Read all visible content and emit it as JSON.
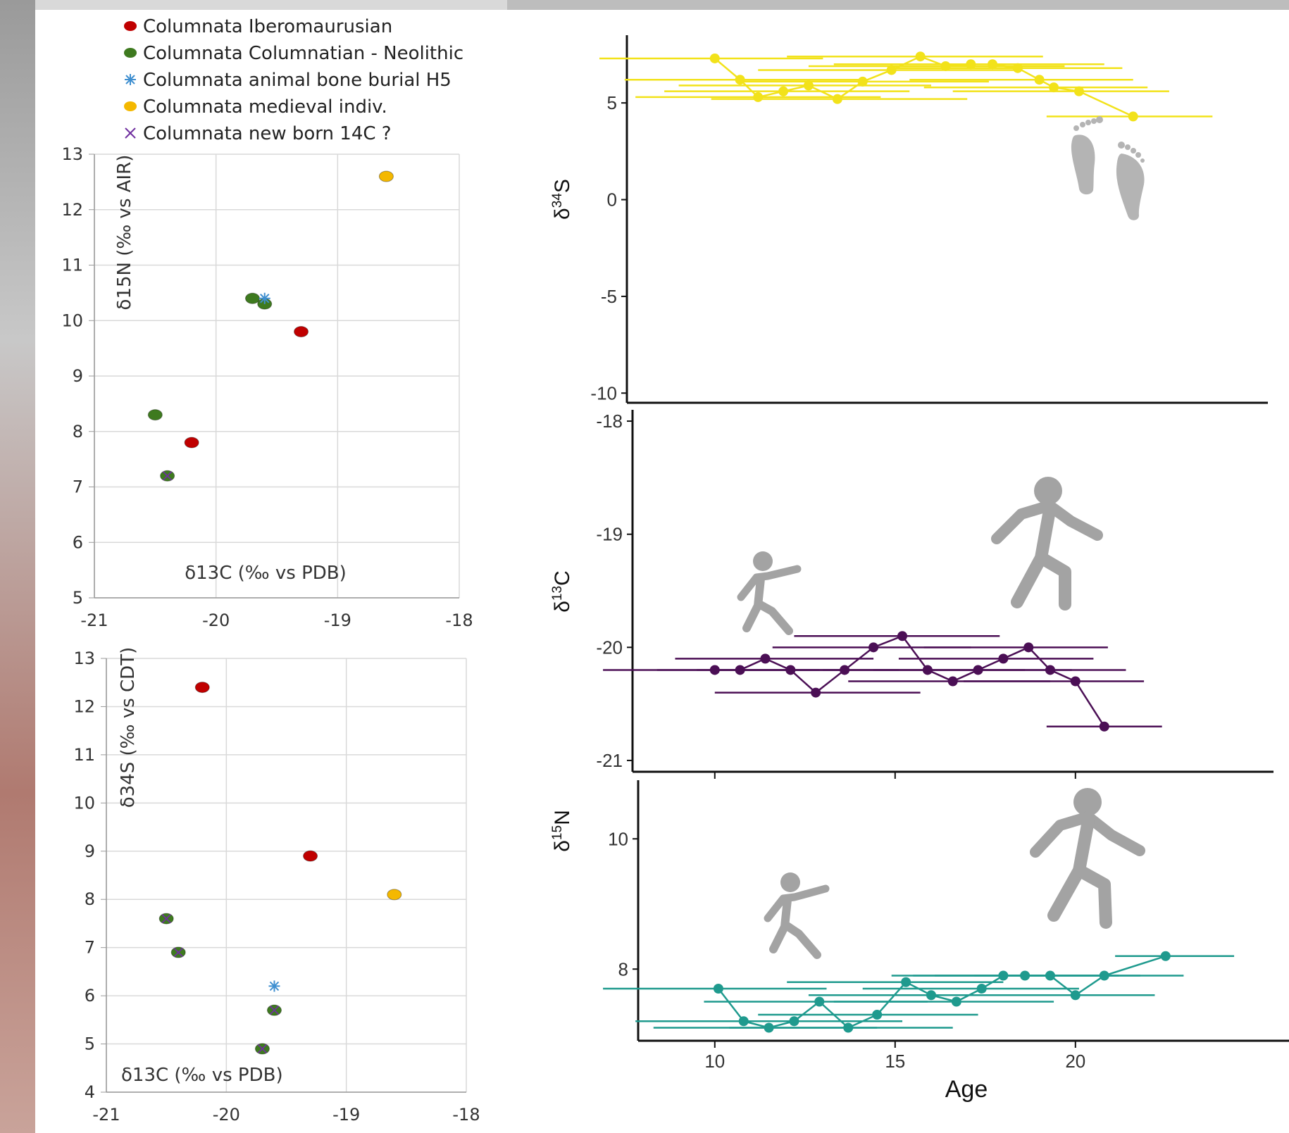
{
  "legend": [
    {
      "label": "Columnata Iberomaurusian",
      "color": "#c00000",
      "marker": "dot"
    },
    {
      "label": "Columnata Columnatian - Neolithic",
      "color": "#3e7a1f",
      "marker": "dot"
    },
    {
      "label": "Columnata animal bone burial H5",
      "color": "#3f8fd0",
      "marker": "star"
    },
    {
      "label": "Columnata medieval indiv.",
      "color": "#f4b800",
      "marker": "dot"
    },
    {
      "label": "Columnata new born 14C ?",
      "color": "#7030a0",
      "marker": "x"
    }
  ],
  "scatter1": {
    "ylabel": "δ15N (‰ vs AIR)",
    "xlabel": "δ13C (‰ vs PDB)",
    "yticks": [
      "13",
      "12",
      "11",
      "10",
      "9",
      "8",
      "7",
      "6",
      "5"
    ],
    "xticks": [
      "-21",
      "-20",
      "-19",
      "-18"
    ]
  },
  "scatter2": {
    "ylabel": "δ34S (‰ vs CDT)",
    "xlabel": "δ13C (‰ vs PDB)",
    "yticks": [
      "13",
      "12",
      "11",
      "10",
      "9",
      "8",
      "7",
      "6",
      "5",
      "4"
    ],
    "xticks": [
      "-21",
      "-20",
      "-19",
      "-18"
    ]
  },
  "right": {
    "sulfur": {
      "label_prefix": "δ",
      "label_sup": "34",
      "label_el": "S",
      "yticks": [
        "5",
        "0",
        "-5",
        "-10"
      ],
      "color": "#f2e21a"
    },
    "carbon": {
      "label_prefix": "δ",
      "label_sup": "13",
      "label_el": "C",
      "yticks": [
        "-18",
        "-19",
        "-20",
        "-21"
      ],
      "color": "#4b0f55"
    },
    "nitrogen": {
      "label_prefix": "δ",
      "label_sup": "15",
      "label_el": "N",
      "yticks": [
        "10",
        "8"
      ],
      "color": "#1f9a8e"
    },
    "xticks": [
      "10",
      "15",
      "20"
    ],
    "xlabel": "Age"
  },
  "chart_data": [
    {
      "type": "scatter",
      "title": "",
      "xlabel": "δ13C (‰ vs PDB)",
      "ylabel": "δ15N (‰ vs AIR)",
      "xlim": [
        -21,
        -18
      ],
      "ylim": [
        5,
        13
      ],
      "grid": true,
      "legend_position": "top",
      "series": [
        {
          "name": "Columnata Iberomaurusian",
          "color": "#c00000",
          "marker": "dot",
          "points": [
            [
              -19.3,
              9.8
            ],
            [
              -20.2,
              7.8
            ]
          ]
        },
        {
          "name": "Columnata Columnatian - Neolithic",
          "color": "#3e7a1f",
          "marker": "dot",
          "points": [
            [
              -19.7,
              10.4
            ],
            [
              -19.6,
              10.3
            ],
            [
              -20.5,
              8.3
            ],
            [
              -20.4,
              7.2
            ]
          ]
        },
        {
          "name": "Columnata animal bone burial H5",
          "color": "#3f8fd0",
          "marker": "star",
          "points": [
            [
              -19.6,
              10.4
            ]
          ]
        },
        {
          "name": "Columnata medieval indiv.",
          "color": "#f4b800",
          "marker": "dot",
          "points": [
            [
              -18.6,
              12.6
            ]
          ]
        },
        {
          "name": "Columnata new born 14C ?",
          "color": "#7030a0",
          "marker": "x",
          "points": [
            [
              -20.4,
              7.2
            ]
          ]
        }
      ]
    },
    {
      "type": "scatter",
      "title": "",
      "xlabel": "δ13C (‰ vs PDB)",
      "ylabel": "δ34S (‰ vs CDT)",
      "xlim": [
        -21,
        -18
      ],
      "ylim": [
        4,
        13
      ],
      "grid": true,
      "series": [
        {
          "name": "Columnata Iberomaurusian",
          "color": "#c00000",
          "marker": "dot",
          "points": [
            [
              -20.2,
              12.4
            ],
            [
              -19.3,
              8.9
            ]
          ]
        },
        {
          "name": "Columnata Columnatian - Neolithic",
          "color": "#3e7a1f",
          "marker": "dot",
          "points": [
            [
              -20.5,
              7.6
            ],
            [
              -20.4,
              6.9
            ],
            [
              -19.6,
              5.7
            ],
            [
              -19.7,
              4.9
            ]
          ]
        },
        {
          "name": "Columnata animal bone burial H5",
          "color": "#3f8fd0",
          "marker": "star",
          "points": [
            [
              -19.6,
              6.2
            ]
          ]
        },
        {
          "name": "Columnata medieval indiv.",
          "color": "#f4b800",
          "marker": "dot",
          "points": [
            [
              -18.6,
              8.1
            ]
          ]
        },
        {
          "name": "Columnata new born 14C ?",
          "color": "#7030a0",
          "marker": "x",
          "points": [
            [
              -20.5,
              7.6
            ],
            [
              -20.4,
              6.9
            ],
            [
              -19.6,
              5.7
            ],
            [
              -19.7,
              4.9
            ]
          ]
        }
      ]
    },
    {
      "type": "line",
      "xlabel": "",
      "ylabel": "δ34S",
      "xlim": [
        6,
        24
      ],
      "ylim": [
        -10.5,
        8.5
      ],
      "color": "#f2e21a",
      "points": [
        {
          "x": 10.0,
          "y": 7.3,
          "xmin": 6.8,
          "xmax": 13.0
        },
        {
          "x": 10.7,
          "y": 6.2,
          "xmin": 7.5,
          "xmax": 14.2
        },
        {
          "x": 11.2,
          "y": 5.3,
          "xmin": 7.8,
          "xmax": 14.6
        },
        {
          "x": 11.9,
          "y": 5.6,
          "xmin": 8.6,
          "xmax": 15.4
        },
        {
          "x": 12.6,
          "y": 5.9,
          "xmin": 9.0,
          "xmax": 16.0
        },
        {
          "x": 13.4,
          "y": 5.2,
          "xmin": 9.9,
          "xmax": 17.0
        },
        {
          "x": 14.1,
          "y": 6.1,
          "xmin": 10.6,
          "xmax": 17.6
        },
        {
          "x": 14.9,
          "y": 6.7,
          "xmin": 11.2,
          "xmax": 18.3
        },
        {
          "x": 15.7,
          "y": 7.4,
          "xmin": 12.0,
          "xmax": 19.1
        },
        {
          "x": 16.4,
          "y": 6.9,
          "xmin": 12.6,
          "xmax": 19.7
        },
        {
          "x": 17.1,
          "y": 7.0,
          "xmin": 13.3,
          "xmax": 20.3
        },
        {
          "x": 17.7,
          "y": 7.0,
          "xmin": 13.9,
          "xmax": 20.8
        },
        {
          "x": 18.4,
          "y": 6.8,
          "xmin": 14.8,
          "xmax": 21.3
        },
        {
          "x": 19.0,
          "y": 6.2,
          "xmin": 15.4,
          "xmax": 21.6
        },
        {
          "x": 19.4,
          "y": 5.8,
          "xmin": 15.8,
          "xmax": 22.0
        },
        {
          "x": 20.1,
          "y": 5.6,
          "xmin": 16.6,
          "xmax": 22.6
        },
        {
          "x": 21.6,
          "y": 4.3,
          "xmin": 19.2,
          "xmax": 23.8
        }
      ]
    },
    {
      "type": "line",
      "xlabel": "",
      "ylabel": "δ13C",
      "xlim": [
        6,
        24
      ],
      "ylim": [
        -21.1,
        -17.9
      ],
      "color": "#4b0f55",
      "points": [
        {
          "x": 10.0,
          "y": -20.2,
          "xmin": 6.9,
          "xmax": 12.9
        },
        {
          "x": 10.7,
          "y": -20.2,
          "xmin": 8.4,
          "xmax": 13.7
        },
        {
          "x": 11.4,
          "y": -20.1,
          "xmin": 8.9,
          "xmax": 14.4
        },
        {
          "x": 12.1,
          "y": -20.2,
          "xmin": 9.5,
          "xmax": 15.1
        },
        {
          "x": 12.8,
          "y": -20.4,
          "xmin": 10.0,
          "xmax": 15.7
        },
        {
          "x": 13.6,
          "y": -20.2,
          "xmin": 10.8,
          "xmax": 16.4
        },
        {
          "x": 14.4,
          "y": -20.0,
          "xmin": 11.6,
          "xmax": 17.1
        },
        {
          "x": 15.2,
          "y": -19.9,
          "xmin": 12.2,
          "xmax": 17.9
        },
        {
          "x": 15.9,
          "y": -20.2,
          "xmin": 13.0,
          "xmax": 18.6
        },
        {
          "x": 16.6,
          "y": -20.3,
          "xmin": 13.7,
          "xmax": 19.3
        },
        {
          "x": 17.3,
          "y": -20.2,
          "xmin": 14.4,
          "xmax": 19.9
        },
        {
          "x": 18.0,
          "y": -20.1,
          "xmin": 15.1,
          "xmax": 20.5
        },
        {
          "x": 18.7,
          "y": -20.0,
          "xmin": 15.8,
          "xmax": 20.9
        },
        {
          "x": 19.3,
          "y": -20.2,
          "xmin": 16.4,
          "xmax": 21.4
        },
        {
          "x": 20.0,
          "y": -20.3,
          "xmin": 16.9,
          "xmax": 21.9
        },
        {
          "x": 20.8,
          "y": -20.7,
          "xmin": 19.2,
          "xmax": 22.4
        }
      ]
    },
    {
      "type": "line",
      "xlabel": "Age",
      "ylabel": "δ15N",
      "xlim": [
        6,
        24
      ],
      "ylim": [
        6.9,
        10.9
      ],
      "color": "#1f9a8e",
      "points": [
        {
          "x": 10.1,
          "y": 7.7,
          "xmin": 6.9,
          "xmax": 13.1
        },
        {
          "x": 10.8,
          "y": 7.2,
          "xmin": 7.8,
          "xmax": 13.8
        },
        {
          "x": 11.5,
          "y": 7.1,
          "xmin": 8.3,
          "xmax": 14.5
        },
        {
          "x": 12.2,
          "y": 7.2,
          "xmin": 9.0,
          "xmax": 15.2
        },
        {
          "x": 12.9,
          "y": 7.5,
          "xmin": 9.7,
          "xmax": 15.9
        },
        {
          "x": 13.7,
          "y": 7.1,
          "xmin": 10.4,
          "xmax": 16.6
        },
        {
          "x": 14.5,
          "y": 7.3,
          "xmin": 11.2,
          "xmax": 17.3
        },
        {
          "x": 15.3,
          "y": 7.8,
          "xmin": 12.0,
          "xmax": 18.0
        },
        {
          "x": 16.0,
          "y": 7.6,
          "xmin": 12.6,
          "xmax": 18.8
        },
        {
          "x": 16.7,
          "y": 7.5,
          "xmin": 13.3,
          "xmax": 19.4
        },
        {
          "x": 17.4,
          "y": 7.7,
          "xmin": 14.1,
          "xmax": 20.1
        },
        {
          "x": 18.0,
          "y": 7.9,
          "xmin": 14.9,
          "xmax": 20.8
        },
        {
          "x": 18.6,
          "y": 7.9,
          "xmin": 15.5,
          "xmax": 21.2
        },
        {
          "x": 19.3,
          "y": 7.9,
          "xmin": 16.1,
          "xmax": 21.8
        },
        {
          "x": 20.0,
          "y": 7.6,
          "xmin": 16.6,
          "xmax": 22.2
        },
        {
          "x": 20.8,
          "y": 7.9,
          "xmin": 17.2,
          "xmax": 23.0
        },
        {
          "x": 22.5,
          "y": 8.2,
          "xmin": 21.1,
          "xmax": 24.4
        }
      ]
    }
  ]
}
